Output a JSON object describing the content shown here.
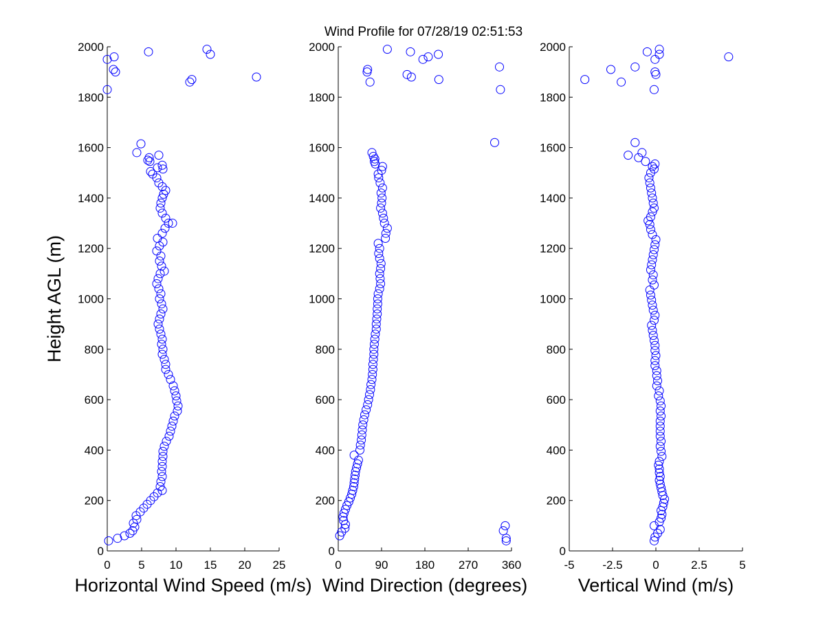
{
  "title_prefix": "Wind Profile for",
  "title_time": "07/28/19 02:51:53",
  "marker_color": "#0000ff",
  "chart_data": [
    {
      "type": "scatter",
      "xlabel": "Horizontal Wind Speed (m/s)",
      "ylabel": "Height AGL (m)",
      "xlim": [
        0,
        25
      ],
      "ylim": [
        0,
        2000
      ],
      "xticks": [
        0,
        5,
        10,
        15,
        20,
        25
      ],
      "xtick_labels": [
        "0",
        "5",
        "10",
        "15",
        "20",
        "25"
      ],
      "yticks": [
        0,
        200,
        400,
        600,
        800,
        1000,
        1200,
        1400,
        1600,
        1800,
        2000
      ],
      "ytick_labels": [
        "0",
        "200",
        "400",
        "600",
        "800",
        "1000",
        "1200",
        "1400",
        "1600",
        "1800",
        "2000"
      ],
      "grid": false,
      "points": [
        [
          0.2,
          40
        ],
        [
          1.5,
          50
        ],
        [
          2.5,
          60
        ],
        [
          3.3,
          70
        ],
        [
          3.7,
          80
        ],
        [
          4.0,
          95
        ],
        [
          3.8,
          110
        ],
        [
          4.3,
          125
        ],
        [
          4.2,
          140
        ],
        [
          4.8,
          155
        ],
        [
          5.3,
          170
        ],
        [
          5.8,
          185
        ],
        [
          6.3,
          200
        ],
        [
          6.8,
          215
        ],
        [
          7.3,
          230
        ],
        [
          8.0,
          240
        ],
        [
          7.7,
          255
        ],
        [
          7.8,
          275
        ],
        [
          8.0,
          295
        ],
        [
          7.9,
          315
        ],
        [
          8.0,
          335
        ],
        [
          8.0,
          355
        ],
        [
          8.1,
          375
        ],
        [
          8.1,
          395
        ],
        [
          8.3,
          415
        ],
        [
          8.6,
          435
        ],
        [
          9.0,
          455
        ],
        [
          9.2,
          475
        ],
        [
          9.4,
          495
        ],
        [
          9.6,
          515
        ],
        [
          9.8,
          535
        ],
        [
          10.2,
          555
        ],
        [
          10.3,
          575
        ],
        [
          10.1,
          595
        ],
        [
          10.0,
          615
        ],
        [
          9.8,
          635
        ],
        [
          9.6,
          655
        ],
        [
          9.2,
          680
        ],
        [
          8.9,
          700
        ],
        [
          8.5,
          720
        ],
        [
          8.5,
          740
        ],
        [
          8.3,
          760
        ],
        [
          8.0,
          780
        ],
        [
          8.1,
          800
        ],
        [
          7.9,
          820
        ],
        [
          8.0,
          840
        ],
        [
          7.8,
          860
        ],
        [
          7.6,
          880
        ],
        [
          7.4,
          900
        ],
        [
          7.6,
          920
        ],
        [
          7.8,
          940
        ],
        [
          8.1,
          960
        ],
        [
          7.9,
          980
        ],
        [
          7.6,
          1000
        ],
        [
          7.8,
          1020
        ],
        [
          7.5,
          1040
        ],
        [
          7.2,
          1060
        ],
        [
          7.4,
          1080
        ],
        [
          7.7,
          1100
        ],
        [
          8.3,
          1110
        ],
        [
          7.9,
          1130
        ],
        [
          7.6,
          1150
        ],
        [
          7.8,
          1170
        ],
        [
          7.2,
          1190
        ],
        [
          7.6,
          1210
        ],
        [
          8.1,
          1225
        ],
        [
          7.3,
          1240
        ],
        [
          8.0,
          1260
        ],
        [
          8.4,
          1280
        ],
        [
          8.9,
          1300
        ],
        [
          9.5,
          1300
        ],
        [
          8.5,
          1320
        ],
        [
          8.0,
          1340
        ],
        [
          7.7,
          1360
        ],
        [
          7.8,
          1380
        ],
        [
          8.0,
          1400
        ],
        [
          8.2,
          1415
        ],
        [
          8.5,
          1430
        ],
        [
          8.0,
          1445
        ],
        [
          7.5,
          1460
        ],
        [
          7.2,
          1480
        ],
        [
          6.6,
          1495
        ],
        [
          6.3,
          1505
        ],
        [
          8.1,
          1515
        ],
        [
          7.3,
          1520
        ],
        [
          8.0,
          1530
        ],
        [
          6.2,
          1545
        ],
        [
          5.9,
          1550
        ],
        [
          6.1,
          1560
        ],
        [
          7.5,
          1570
        ],
        [
          4.3,
          1580
        ],
        [
          4.9,
          1615
        ],
        [
          0.0,
          1830
        ],
        [
          12.0,
          1860
        ],
        [
          12.3,
          1870
        ],
        [
          21.7,
          1880
        ],
        [
          1.2,
          1900
        ],
        [
          0.9,
          1910
        ],
        [
          0.0,
          1950
        ],
        [
          1.0,
          1960
        ],
        [
          15.0,
          1970
        ],
        [
          6.0,
          1980
        ],
        [
          14.5,
          1990
        ]
      ]
    },
    {
      "type": "scatter",
      "xlabel": "Wind Direction (degrees)",
      "ylabel": "",
      "xlim": [
        0,
        360
      ],
      "ylim": [
        0,
        2000
      ],
      "xticks": [
        0,
        90,
        180,
        270,
        360
      ],
      "xtick_labels": [
        "0",
        "90",
        "180",
        "270",
        "360"
      ],
      "yticks": [
        0,
        200,
        400,
        600,
        800,
        1000,
        1200,
        1400,
        1600,
        1800,
        2000
      ],
      "ytick_labels": [
        "0",
        "200",
        "400",
        "600",
        "800",
        "1000",
        "1200",
        "1400",
        "1600",
        "1800",
        "2000"
      ],
      "grid": false,
      "points": [
        [
          3,
          60
        ],
        [
          7,
          75
        ],
        [
          14,
          90
        ],
        [
          15,
          105
        ],
        [
          11,
          120
        ],
        [
          10,
          135
        ],
        [
          12,
          150
        ],
        [
          15,
          165
        ],
        [
          18,
          180
        ],
        [
          22,
          195
        ],
        [
          25,
          210
        ],
        [
          28,
          225
        ],
        [
          30,
          240
        ],
        [
          32,
          255
        ],
        [
          33,
          270
        ],
        [
          34,
          285
        ],
        [
          35,
          300
        ],
        [
          36,
          315
        ],
        [
          38,
          330
        ],
        [
          40,
          345
        ],
        [
          42,
          360
        ],
        [
          33,
          380
        ],
        [
          45,
          400
        ],
        [
          46,
          420
        ],
        [
          48,
          440
        ],
        [
          49,
          460
        ],
        [
          50,
          480
        ],
        [
          51,
          500
        ],
        [
          53,
          520
        ],
        [
          55,
          540
        ],
        [
          58,
          560
        ],
        [
          61,
          580
        ],
        [
          63,
          600
        ],
        [
          65,
          620
        ],
        [
          67,
          640
        ],
        [
          68,
          660
        ],
        [
          70,
          680
        ],
        [
          71,
          700
        ],
        [
          72,
          720
        ],
        [
          72,
          740
        ],
        [
          73,
          760
        ],
        [
          74,
          780
        ],
        [
          74,
          800
        ],
        [
          75,
          820
        ],
        [
          76,
          840
        ],
        [
          77,
          860
        ],
        [
          79,
          880
        ],
        [
          79,
          900
        ],
        [
          80,
          920
        ],
        [
          81,
          940
        ],
        [
          81,
          960
        ],
        [
          82,
          980
        ],
        [
          82,
          1000
        ],
        [
          83,
          1020
        ],
        [
          86,
          1040
        ],
        [
          88,
          1060
        ],
        [
          87,
          1080
        ],
        [
          86,
          1100
        ],
        [
          88,
          1120
        ],
        [
          89,
          1140
        ],
        [
          86,
          1160
        ],
        [
          84,
          1180
        ],
        [
          86,
          1200
        ],
        [
          83,
          1220
        ],
        [
          98,
          1240
        ],
        [
          99,
          1260
        ],
        [
          102,
          1280
        ],
        [
          96,
          1300
        ],
        [
          94,
          1320
        ],
        [
          92,
          1340
        ],
        [
          88,
          1360
        ],
        [
          90,
          1380
        ],
        [
          91,
          1400
        ],
        [
          89,
          1420
        ],
        [
          92,
          1440
        ],
        [
          87,
          1460
        ],
        [
          84,
          1480
        ],
        [
          83,
          1495
        ],
        [
          90,
          1510
        ],
        [
          92,
          1525
        ],
        [
          77,
          1535
        ],
        [
          75,
          1545
        ],
        [
          76,
          1555
        ],
        [
          73,
          1565
        ],
        [
          70,
          1580
        ],
        [
          60,
          1900
        ],
        [
          61,
          1910
        ],
        [
          66,
          1860
        ],
        [
          102,
          1990
        ],
        [
          143,
          1890
        ],
        [
          152,
          1880
        ],
        [
          150,
          1980
        ],
        [
          176,
          1950
        ],
        [
          187,
          1960
        ],
        [
          209,
          1870
        ],
        [
          208,
          1970
        ],
        [
          325,
          1620
        ],
        [
          337,
          1830
        ],
        [
          335,
          1920
        ],
        [
          343,
          80
        ],
        [
          347,
          100
        ],
        [
          349,
          50
        ],
        [
          349,
          40
        ]
      ]
    },
    {
      "type": "scatter",
      "xlabel": "Vertical Wind (m/s)",
      "ylabel": "",
      "xlim": [
        -5,
        5
      ],
      "ylim": [
        0,
        2000
      ],
      "xticks": [
        -5,
        -2.5,
        0,
        2.5,
        5
      ],
      "xtick_labels": [
        "-5",
        "-2.5",
        "0",
        "2.5",
        "5"
      ],
      "yticks": [
        0,
        200,
        400,
        600,
        800,
        1000,
        1200,
        1400,
        1600,
        1800,
        2000
      ],
      "ytick_labels": [
        "0",
        "200",
        "400",
        "600",
        "800",
        "1000",
        "1200",
        "1400",
        "1600",
        "1800",
        "2000"
      ],
      "grid": false,
      "points": [
        [
          -0.1,
          40
        ],
        [
          -0.05,
          55
        ],
        [
          0.1,
          70
        ],
        [
          0.25,
          85
        ],
        [
          -0.1,
          100
        ],
        [
          0.2,
          115
        ],
        [
          0.3,
          130
        ],
        [
          0.35,
          145
        ],
        [
          0.3,
          160
        ],
        [
          0.4,
          175
        ],
        [
          0.45,
          190
        ],
        [
          0.5,
          205
        ],
        [
          0.4,
          220
        ],
        [
          0.35,
          235
        ],
        [
          0.3,
          250
        ],
        [
          0.25,
          265
        ],
        [
          0.2,
          280
        ],
        [
          0.25,
          295
        ],
        [
          0.2,
          310
        ],
        [
          0.2,
          325
        ],
        [
          0.15,
          340
        ],
        [
          0.2,
          355
        ],
        [
          0.35,
          375
        ],
        [
          0.3,
          395
        ],
        [
          0.25,
          415
        ],
        [
          0.3,
          435
        ],
        [
          0.25,
          455
        ],
        [
          0.25,
          475
        ],
        [
          0.25,
          495
        ],
        [
          0.25,
          515
        ],
        [
          0.3,
          535
        ],
        [
          0.25,
          555
        ],
        [
          0.3,
          575
        ],
        [
          0.25,
          595
        ],
        [
          0.15,
          615
        ],
        [
          0.2,
          635
        ],
        [
          0.05,
          655
        ],
        [
          0.1,
          675
        ],
        [
          0.05,
          695
        ],
        [
          0.05,
          715
        ],
        [
          -0.05,
          735
        ],
        [
          -0.05,
          755
        ],
        [
          0.0,
          775
        ],
        [
          -0.05,
          795
        ],
        [
          -0.05,
          815
        ],
        [
          -0.1,
          835
        ],
        [
          -0.15,
          855
        ],
        [
          -0.2,
          875
        ],
        [
          -0.25,
          895
        ],
        [
          -0.1,
          915
        ],
        [
          -0.05,
          935
        ],
        [
          -0.15,
          955
        ],
        [
          -0.2,
          975
        ],
        [
          -0.25,
          995
        ],
        [
          -0.3,
          1015
        ],
        [
          -0.35,
          1035
        ],
        [
          -0.1,
          1055
        ],
        [
          -0.2,
          1075
        ],
        [
          -0.15,
          1095
        ],
        [
          -0.3,
          1115
        ],
        [
          -0.25,
          1135
        ],
        [
          -0.2,
          1155
        ],
        [
          -0.15,
          1175
        ],
        [
          -0.1,
          1195
        ],
        [
          -0.05,
          1215
        ],
        [
          0.0,
          1235
        ],
        [
          -0.2,
          1255
        ],
        [
          -0.3,
          1275
        ],
        [
          -0.35,
          1295
        ],
        [
          -0.45,
          1310
        ],
        [
          -0.3,
          1325
        ],
        [
          -0.2,
          1345
        ],
        [
          -0.1,
          1360
        ],
        [
          -0.15,
          1380
        ],
        [
          -0.2,
          1400
        ],
        [
          -0.25,
          1420
        ],
        [
          -0.3,
          1440
        ],
        [
          -0.35,
          1460
        ],
        [
          -0.4,
          1480
        ],
        [
          -0.3,
          1500
        ],
        [
          -0.1,
          1515
        ],
        [
          -0.2,
          1525
        ],
        [
          -0.05,
          1535
        ],
        [
          -0.6,
          1545
        ],
        [
          -1.0,
          1560
        ],
        [
          -1.6,
          1570
        ],
        [
          -0.8,
          1580
        ],
        [
          -1.2,
          1620
        ],
        [
          -4.1,
          1870
        ],
        [
          -2.6,
          1910
        ],
        [
          -2.0,
          1860
        ],
        [
          -1.2,
          1920
        ],
        [
          -0.1,
          1830
        ],
        [
          0.0,
          1890
        ],
        [
          -0.05,
          1900
        ],
        [
          -0.05,
          1950
        ],
        [
          0.2,
          1970
        ],
        [
          0.2,
          1990
        ],
        [
          -0.5,
          1980
        ],
        [
          4.2,
          1960
        ]
      ]
    }
  ]
}
